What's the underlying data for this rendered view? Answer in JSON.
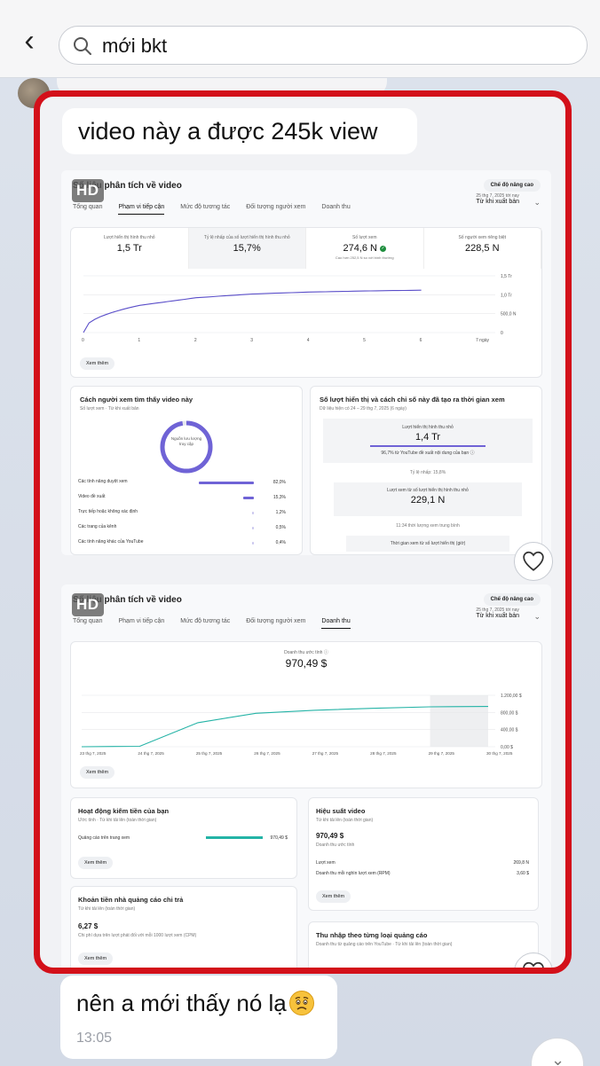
{
  "search": {
    "value": "mới bkt"
  },
  "message1": {
    "text": "video này a được 245k view"
  },
  "screenshot1": {
    "hd": "HD",
    "title": "Số liệu phân tích về video",
    "advanced": "Chế độ nâng cao",
    "tabs": [
      "Tổng quan",
      "Phạm vi tiếp cận",
      "Mức độ tương tác",
      "Đối tượng người xem",
      "Doanh thu"
    ],
    "date_small": "25 thg 7, 2025 tới nay",
    "date_main": "Từ khi xuất bản",
    "metrics": [
      {
        "label": "Lượt hiển thị hình thu nhỏ",
        "value": "1,5 Tr",
        "sub": ""
      },
      {
        "label": "Tỷ lệ nhấp của số lượt hiển thị hình thu nhỏ",
        "value": "15,7%",
        "sub": ""
      },
      {
        "label": "Số lượt xem",
        "value": "274,6 N",
        "sub": "Cao hơn 252,5 N so với bình thường"
      },
      {
        "label": "Số người xem riêng biệt",
        "value": "228,5 N",
        "sub": ""
      }
    ],
    "chart_data": {
      "type": "line",
      "x": [
        0,
        1,
        2,
        3,
        4,
        5,
        6
      ],
      "y_ticks": [
        "0",
        "500,0 N",
        "1,0 Tr",
        "1,5 Tr"
      ],
      "x_ticks": [
        "0",
        "1",
        "2",
        "3",
        "4",
        "5",
        "6",
        "7 ngày"
      ],
      "values": [
        0,
        0.72,
        0.92,
        1.02,
        1.07,
        1.1,
        1.12
      ],
      "ylim": [
        0,
        1.5
      ]
    },
    "see_more": "Xem thêm",
    "sources_title": "Cách người xem tìm thấy video này",
    "sources_sub": "Số lượt xem · Từ khi xuất bản",
    "donut_label": "Nguồn lưu lượng truy cập",
    "sources": [
      {
        "name": "Các tính năng duyệt xem",
        "pct": "82,0%",
        "frac": 0.82
      },
      {
        "name": "Video đề xuất",
        "pct": "15,3%",
        "frac": 0.153
      },
      {
        "name": "Trực tiếp hoặc không xác định",
        "pct": "1,2%",
        "frac": 0.012
      },
      {
        "name": "Các trang của kênh",
        "pct": "0,5%",
        "frac": 0.005
      },
      {
        "name": "Các tính năng khác của YouTube",
        "pct": "0,4%",
        "frac": 0.004
      }
    ],
    "funnel_title": "Số lượt hiển thị và cách chỉ số này đã tạo ra thời gian xem",
    "funnel_sub": "Dữ liệu hiện có 24 – 29 thg 7, 2025 (6 ngày)",
    "funnel": {
      "impr_label": "Lượt hiển thị hình thu nhỏ",
      "impr_value": "1,4 Tr",
      "impr_note": "96,7% từ YouTube đề xuất nội dung của bạn",
      "ctr": "Tỷ lệ nhấp: 15,8%",
      "views_label": "Lượt xem từ số lượt hiển thị hình thu nhỏ",
      "views_value": "229,1 N",
      "avg": "11:34 thời lượng xem trung bình",
      "watch": "Thời gian xem từ số lượt hiển thị (giờ)"
    }
  },
  "screenshot2": {
    "hd": "HD",
    "title": "Số liệu phân tích về video",
    "advanced": "Chế độ nâng cao",
    "tabs": [
      "Tổng quan",
      "Phạm vi tiếp cận",
      "Mức độ tương tác",
      "Đối tượng người xem",
      "Doanh thu"
    ],
    "date_small": "25 thg 7, 2025 tới nay",
    "date_main": "Từ khi xuất bản",
    "rev_label": "Doanh thu ước tính",
    "rev_value": "970,49 $",
    "chart_data": {
      "type": "line",
      "x": [
        "23 thg 7, 2025",
        "24 thg 7, 2025",
        "25 thg 7, 2025",
        "26 thg 7, 2025",
        "27 thg 7, 2025",
        "28 thg 7, 2025",
        "29 thg 7, 2025",
        "30 thg 7, 2025"
      ],
      "values": [
        0,
        10,
        560,
        780,
        850,
        895,
        930,
        940
      ],
      "y_ticks": [
        "0,00 $",
        "400,00 $",
        "800,00 $",
        "1.200,00 $"
      ],
      "ylim": [
        0,
        1200
      ]
    },
    "see_more": "Xem thêm",
    "monet_title": "Hoạt động kiếm tiền của bạn",
    "monet_sub": "Ước tính · Từ khi tải lên (toàn thời gian)",
    "monet_row": "Quảng cáo trên trang xem",
    "monet_value": "970,49 $",
    "perf_title": "Hiệu suất video",
    "perf_sub": "Từ khi tải lên (toàn thời gian)",
    "perf_value": "970,49 $",
    "perf_value_label": "Doanh thu ước tính",
    "perf_rows": [
      {
        "k": "Lượt xem",
        "v": "269,8 N"
      },
      {
        "k": "Doanh thu mỗi nghìn lượt xem (RPM)",
        "v": "3,60 $"
      }
    ],
    "paid_title": "Khoản tiền nhà quảng cáo chi trả",
    "paid_sub": "Từ khi tải lên (toàn thời gian)",
    "paid_value": "6,27 $",
    "paid_note": "Chi phí dựa trên lượt phát đối với mỗi 1000 lượt xem (CPM)",
    "adtype_title": "Thu nhập theo từng loại quảng cáo",
    "adtype_sub": "Doanh thu từ quảng cáo trên YouTube · Từ khi tải lên (toàn thời gian)"
  },
  "message2": {
    "text": "nên a mới thấy nó lạ",
    "time": "13:05"
  }
}
